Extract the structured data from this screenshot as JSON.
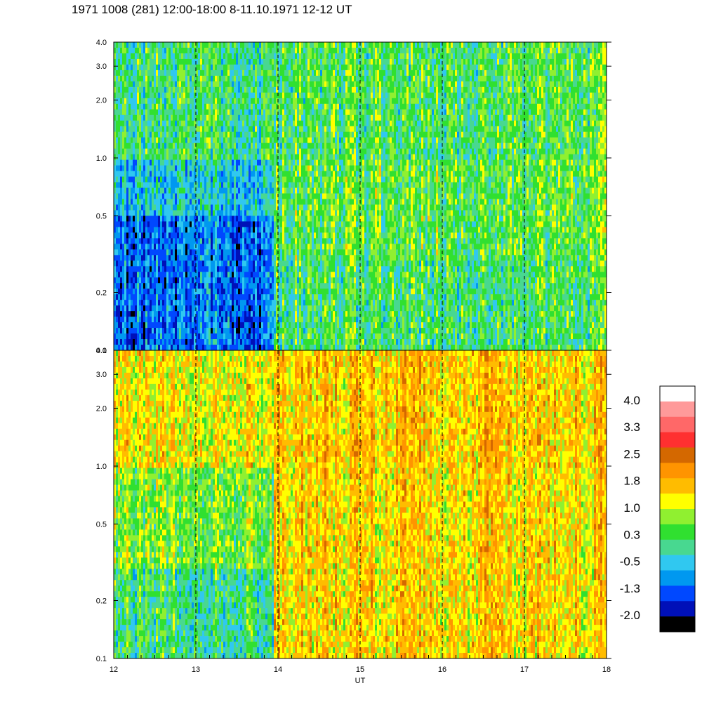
{
  "title": "1971 1008 (281) 12:00-18:00 8-11.10.1971  12-12 UT",
  "chart_data": {
    "type": "heatmap",
    "title": "1971 1008 (281) 12:00-18:00 8-11.10.1971  12-12 UT",
    "xlabel": "UT",
    "x_ticks": [
      "12",
      "13",
      "14",
      "15",
      "16",
      "17",
      "18"
    ],
    "x_range": [
      12,
      18
    ],
    "y_scale": "log",
    "y_range": [
      0.1,
      4.0
    ],
    "y_ticks": [
      "0.1",
      "0.2",
      "0.5",
      "1.0",
      "2.0",
      "3.0",
      "4.0"
    ],
    "dashed_vlines_at_hours": [
      13,
      14,
      15,
      16,
      17
    ],
    "panels": [
      {
        "name": "upper",
        "description_levels": [
          {
            "x_from": 12.0,
            "x_to": 13.95,
            "y_from": 0.1,
            "y_to": 0.5,
            "level": -0.9
          },
          {
            "x_from": 12.0,
            "x_to": 13.95,
            "y_from": 0.5,
            "y_to": 1.0,
            "level": -0.3
          },
          {
            "x_from": 12.0,
            "x_to": 13.95,
            "y_from": 1.0,
            "y_to": 4.0,
            "level": 0.2
          },
          {
            "x_from": 13.95,
            "x_to": 18.0,
            "y_from": 0.1,
            "y_to": 0.3,
            "level": 0.3
          },
          {
            "x_from": 13.95,
            "x_to": 18.0,
            "y_from": 0.3,
            "y_to": 1.0,
            "level": 0.5
          },
          {
            "x_from": 13.95,
            "x_to": 18.0,
            "y_from": 1.0,
            "y_to": 4.0,
            "level": 0.4
          }
        ]
      },
      {
        "name": "lower",
        "description_levels": [
          {
            "x_from": 12.0,
            "x_to": 13.95,
            "y_from": 0.1,
            "y_to": 0.3,
            "level": 0.2
          },
          {
            "x_from": 12.0,
            "x_to": 13.95,
            "y_from": 0.3,
            "y_to": 1.0,
            "level": 0.7
          },
          {
            "x_from": 12.0,
            "x_to": 13.95,
            "y_from": 1.0,
            "y_to": 4.0,
            "level": 1.3
          },
          {
            "x_from": 13.95,
            "x_to": 18.0,
            "y_from": 0.1,
            "y_to": 1.0,
            "level": 1.4
          },
          {
            "x_from": 13.95,
            "x_to": 18.0,
            "y_from": 1.0,
            "y_to": 4.0,
            "level": 1.5
          }
        ]
      }
    ],
    "colorbar": {
      "labels": [
        "4.0",
        "3.3",
        "2.5",
        "1.8",
        "1.0",
        "0.3",
        "-0.5",
        "-1.3",
        "-2.0"
      ],
      "range": [
        -2.0,
        4.0
      ],
      "colors_top_to_bottom": [
        "#ffffff",
        "#ff9a9a",
        "#ff6868",
        "#ff3030",
        "#d46800",
        "#ff9400",
        "#ffbc00",
        "#ffff00",
        "#90f030",
        "#30e030",
        "#48d890",
        "#30c8f0",
        "#0098f0",
        "#0048ff",
        "#0010b8",
        "#000000"
      ]
    }
  }
}
